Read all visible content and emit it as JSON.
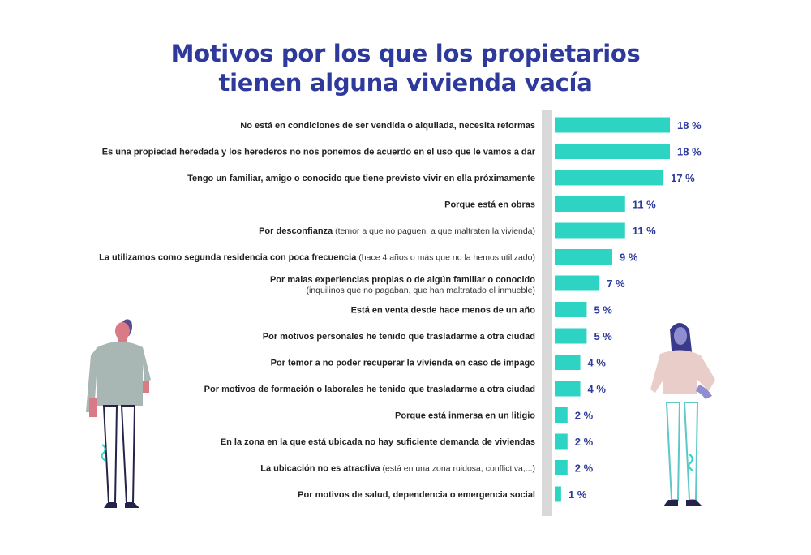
{
  "title_lines": [
    "Motivos por los que los propietarios",
    "tienen alguna vivienda vacía"
  ],
  "colors": {
    "title": "#2d3a9c",
    "bar": "#2dd4c4",
    "value": "#2d3a9c",
    "axis": "#d9d9d9"
  },
  "chart_data": {
    "type": "bar",
    "orientation": "horizontal",
    "title": "Motivos por los que los propietarios tienen alguna vivienda vacía",
    "unit": "%",
    "categories": [
      {
        "main": "No está en condiciones de ser vendida o alquilada, necesita reformas",
        "note": "",
        "value": 18,
        "label": "18 %"
      },
      {
        "main": "Es una propiedad heredada y los herederos no nos ponemos de acuerdo en el uso que le vamos a dar",
        "note": "",
        "value": 18,
        "label": "18 %"
      },
      {
        "main": "Tengo un familiar, amigo o conocido que tiene previsto vivir en ella próximamente",
        "note": "",
        "value": 17,
        "label": "17 %"
      },
      {
        "main": "Porque está en obras",
        "note": "",
        "value": 11,
        "label": "11 %"
      },
      {
        "main": "Por desconfianza",
        "note": " (temor a que no paguen, a que maltraten la vivienda)",
        "value": 11,
        "label": "11 %"
      },
      {
        "main": "La utilizamos como segunda residencia con poca frecuencia",
        "note": " (hace 4 años o más que no la hemos utilizado)",
        "value": 9,
        "label": "9 %"
      },
      {
        "main": "Por malas experiencias propias o de algún familiar o conocido",
        "note2": "(inquilinos que no pagaban, que han maltratado el inmueble)",
        "value": 7,
        "label": "7 %"
      },
      {
        "main": "Está en venta desde hace menos de un año",
        "note": "",
        "value": 5,
        "label": "5 %"
      },
      {
        "main": "Por motivos personales he tenido que trasladarme a otra ciudad",
        "note": "",
        "value": 5,
        "label": "5 %"
      },
      {
        "main": "Por temor a no poder recuperar la vivienda en caso de impago",
        "note": "",
        "value": 4,
        "label": "4 %"
      },
      {
        "main": "Por motivos de formación o laborales he tenido que trasladarme a otra ciudad",
        "note": "",
        "value": 4,
        "label": "4 %"
      },
      {
        "main": "Porque está inmersa en un litigio",
        "note": "",
        "value": 2,
        "label": "2 %"
      },
      {
        "main": "En la zona en la que está ubicada no hay suficiente demanda de viviendas",
        "note": "",
        "value": 2,
        "label": "2 %"
      },
      {
        "main": "La ubicación no es atractiva",
        "note": " (está en una zona ruidosa, conflictiva,...)",
        "value": 2,
        "label": "2 %"
      },
      {
        "main": "Por motivos de salud, dependencia o emergencia social",
        "note": "",
        "value": 1,
        "label": "1 %"
      }
    ],
    "xlim": [
      0,
      18
    ],
    "grid": false,
    "legend": "none"
  }
}
